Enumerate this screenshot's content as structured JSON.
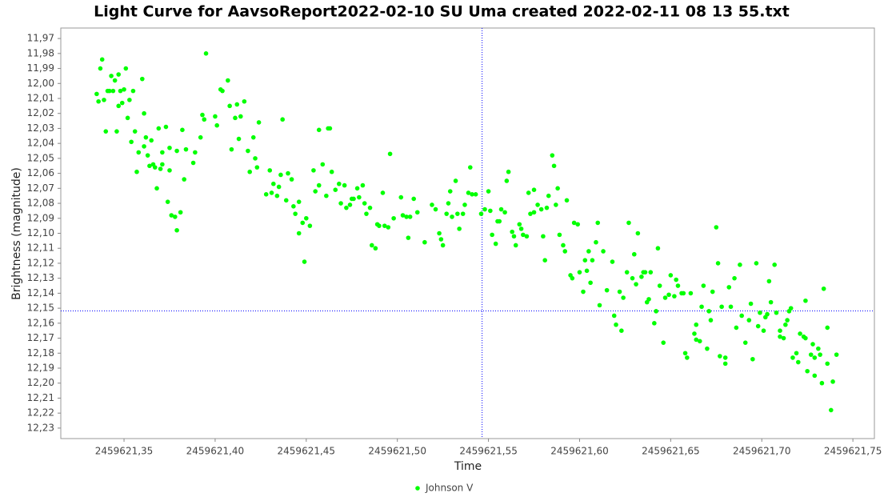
{
  "chart_data": {
    "type": "scatter",
    "title": "Light Curve for AavsoReport2022-02-10 SU Uma created 2022-02-11 08 13 55.txt",
    "x_label": "Time",
    "y_label": "Brightness (magnitude)",
    "xlim": [
      2459621.3153,
      2459621.7618
    ],
    "ylim": [
      11.963,
      12.237
    ],
    "y_inverted": true,
    "xticks": [
      {
        "value": 2459621.35,
        "label": "2459621,35"
      },
      {
        "value": 2459621.4,
        "label": "2459621,40"
      },
      {
        "value": 2459621.45,
        "label": "2459621,45"
      },
      {
        "value": 2459621.5,
        "label": "2459621,50"
      },
      {
        "value": 2459621.55,
        "label": "2459621,55"
      },
      {
        "value": 2459621.6,
        "label": "2459621,60"
      },
      {
        "value": 2459621.65,
        "label": "2459621,65"
      },
      {
        "value": 2459621.7,
        "label": "2459621,70"
      },
      {
        "value": 2459621.75,
        "label": "2459621,75"
      }
    ],
    "yticks": [
      {
        "value": 11.97,
        "label": "11,97"
      },
      {
        "value": 11.98,
        "label": "11,98"
      },
      {
        "value": 11.99,
        "label": "11,99"
      },
      {
        "value": 12.0,
        "label": "12,00"
      },
      {
        "value": 12.01,
        "label": "12,01"
      },
      {
        "value": 12.02,
        "label": "12,02"
      },
      {
        "value": 12.03,
        "label": "12,03"
      },
      {
        "value": 12.04,
        "label": "12,04"
      },
      {
        "value": 12.05,
        "label": "12,05"
      },
      {
        "value": 12.06,
        "label": "12,06"
      },
      {
        "value": 12.07,
        "label": "12,07"
      },
      {
        "value": 12.08,
        "label": "12,08"
      },
      {
        "value": 12.09,
        "label": "12,09"
      },
      {
        "value": 12.1,
        "label": "12,10"
      },
      {
        "value": 12.11,
        "label": "12,11"
      },
      {
        "value": 12.12,
        "label": "12,12"
      },
      {
        "value": 12.13,
        "label": "12,13"
      },
      {
        "value": 12.14,
        "label": "12,14"
      },
      {
        "value": 12.15,
        "label": "12,15"
      },
      {
        "value": 12.16,
        "label": "12,16"
      },
      {
        "value": 12.17,
        "label": "12,17"
      },
      {
        "value": 12.18,
        "label": "12,18"
      },
      {
        "value": 12.19,
        "label": "12,19"
      },
      {
        "value": 12.2,
        "label": "12,20"
      },
      {
        "value": 12.21,
        "label": "12,21"
      },
      {
        "value": 12.22,
        "label": "12,22"
      },
      {
        "value": 12.23,
        "label": "12,23"
      }
    ],
    "crosshair": {
      "x": 2459621.5465,
      "y": 12.1518,
      "color": "#0000ff"
    },
    "legend": "bottom",
    "x": [
      2459621.335,
      2459621.336,
      2459621.337,
      2459621.338,
      2459621.339,
      2459621.34,
      2459621.341,
      2459621.342,
      2459621.343,
      2459621.344,
      2459621.345,
      2459621.346,
      2459621.347,
      2459621.347,
      2459621.348,
      2459621.349,
      2459621.35,
      2459621.351,
      2459621.352,
      2459621.353,
      2459621.354,
      2459621.355,
      2459621.356,
      2459621.357,
      2459621.358,
      2459621.36,
      2459621.361,
      2459621.361,
      2459621.362,
      2459621.363,
      2459621.364,
      2459621.365,
      2459621.366,
      2459621.367,
      2459621.368,
      2459621.369,
      2459621.37,
      2459621.371,
      2459621.371,
      2459621.373,
      2459621.374,
      2459621.375,
      2459621.375,
      2459621.376,
      2459621.378,
      2459621.379,
      2459621.379,
      2459621.381,
      2459621.382,
      2459621.383,
      2459621.384,
      2459621.388,
      2459621.389,
      2459621.392,
      2459621.393,
      2459621.394,
      2459621.395,
      2459621.4,
      2459621.401,
      2459621.403,
      2459621.404,
      2459621.407,
      2459621.408,
      2459621.409,
      2459621.411,
      2459621.412,
      2459621.413,
      2459621.414,
      2459621.416,
      2459621.418,
      2459621.419,
      2459621.421,
      2459621.422,
      2459621.423,
      2459621.424,
      2459621.428,
      2459621.43,
      2459621.431,
      2459621.432,
      2459621.434,
      2459621.435,
      2459621.436,
      2459621.437,
      2459621.439,
      2459621.44,
      2459621.442,
      2459621.443,
      2459621.444,
      2459621.446,
      2459621.446,
      2459621.448,
      2459621.449,
      2459621.45,
      2459621.452,
      2459621.454,
      2459621.455,
      2459621.457,
      2459621.457,
      2459621.459,
      2459621.461,
      2459621.462,
      2459621.463,
      2459621.464,
      2459621.466,
      2459621.468,
      2459621.469,
      2459621.471,
      2459621.472,
      2459621.474,
      2459621.475,
      2459621.476,
      2459621.478,
      2459621.479,
      2459621.481,
      2459621.482,
      2459621.483,
      2459621.485,
      2459621.486,
      2459621.488,
      2459621.489,
      2459621.49,
      2459621.492,
      2459621.493,
      2459621.495,
      2459621.496,
      2459621.498,
      2459621.502,
      2459621.503,
      2459621.505,
      2459621.506,
      2459621.507,
      2459621.509,
      2459621.511,
      2459621.515,
      2459621.519,
      2459621.521,
      2459621.523,
      2459621.524,
      2459621.525,
      2459621.527,
      2459621.528,
      2459621.529,
      2459621.53,
      2459621.532,
      2459621.533,
      2459621.534,
      2459621.536,
      2459621.537,
      2459621.539,
      2459621.54,
      2459621.541,
      2459621.543,
      2459621.546,
      2459621.548,
      2459621.55,
      2459621.551,
      2459621.552,
      2459621.554,
      2459621.555,
      2459621.556,
      2459621.557,
      2459621.559,
      2459621.56,
      2459621.561,
      2459621.563,
      2459621.564,
      2459621.565,
      2459621.567,
      2459621.568,
      2459621.569,
      2459621.571,
      2459621.572,
      2459621.573,
      2459621.575,
      2459621.575,
      2459621.577,
      2459621.579,
      2459621.58,
      2459621.581,
      2459621.582,
      2459621.583,
      2459621.585,
      2459621.586,
      2459621.587,
      2459621.588,
      2459621.589,
      2459621.591,
      2459621.592,
      2459621.593,
      2459621.595,
      2459621.596,
      2459621.597,
      2459621.599,
      2459621.6,
      2459621.602,
      2459621.603,
      2459621.604,
      2459621.605,
      2459621.606,
      2459621.607,
      2459621.609,
      2459621.61,
      2459621.611,
      2459621.613,
      2459621.615,
      2459621.618,
      2459621.619,
      2459621.62,
      2459621.622,
      2459621.623,
      2459621.624,
      2459621.626,
      2459621.627,
      2459621.629,
      2459621.63,
      2459621.631,
      2459621.632,
      2459621.634,
      2459621.635,
      2459621.636,
      2459621.637,
      2459621.638,
      2459621.639,
      2459621.641,
      2459621.642,
      2459621.643,
      2459621.644,
      2459621.646,
      2459621.647,
      2459621.649,
      2459621.65,
      2459621.652,
      2459621.653,
      2459621.654,
      2459621.656,
      2459621.657,
      2459621.658,
      2459621.659,
      2459621.661,
      2459621.663,
      2459621.664,
      2459621.664,
      2459621.666,
      2459621.667,
      2459621.668,
      2459621.67,
      2459621.671,
      2459621.672,
      2459621.673,
      2459621.675,
      2459621.676,
      2459621.677,
      2459621.678,
      2459621.68,
      2459621.68,
      2459621.682,
      2459621.683,
      2459621.685,
      2459621.686,
      2459621.688,
      2459621.689,
      2459621.691,
      2459621.693,
      2459621.694,
      2459621.695,
      2459621.697,
      2459621.698,
      2459621.699,
      2459621.701,
      2459621.702,
      2459621.703,
      2459621.704,
      2459621.705,
      2459621.707,
      2459621.708,
      2459621.71,
      2459621.71,
      2459621.712,
      2459621.713,
      2459621.714,
      2459621.715,
      2459621.716,
      2459621.717,
      2459621.719,
      2459621.72,
      2459621.721,
      2459621.723,
      2459621.724,
      2459621.724,
      2459621.725,
      2459621.727,
      2459621.728,
      2459621.729,
      2459621.729,
      2459621.731,
      2459621.732,
      2459621.733,
      2459621.734,
      2459621.736,
      2459621.736,
      2459621.738,
      2459621.739,
      2459621.741
    ],
    "series": [
      {
        "name": "Johnson V",
        "color": "#00ff00",
        "values": [
          12.007,
          12.012,
          11.99,
          11.984,
          12.011,
          12.032,
          12.005,
          12.005,
          11.995,
          12.005,
          11.998,
          12.032,
          11.994,
          12.015,
          12.005,
          12.013,
          12.004,
          11.99,
          12.023,
          12.011,
          12.039,
          12.005,
          12.032,
          12.059,
          12.046,
          11.997,
          12.02,
          12.042,
          12.036,
          12.048,
          12.055,
          12.038,
          12.054,
          12.056,
          12.07,
          12.03,
          12.057,
          12.046,
          12.054,
          12.029,
          12.079,
          12.058,
          12.043,
          12.088,
          12.089,
          12.045,
          12.098,
          12.086,
          12.031,
          12.064,
          12.044,
          12.053,
          12.046,
          12.036,
          12.021,
          12.024,
          11.98,
          12.022,
          12.028,
          12.004,
          12.005,
          11.998,
          12.015,
          12.044,
          12.023,
          12.014,
          12.037,
          12.022,
          12.012,
          12.045,
          12.059,
          12.036,
          12.05,
          12.056,
          12.026,
          12.074,
          12.058,
          12.073,
          12.067,
          12.075,
          12.069,
          12.061,
          12.024,
          12.078,
          12.06,
          12.064,
          12.082,
          12.087,
          12.079,
          12.1,
          12.093,
          12.119,
          12.09,
          12.095,
          12.058,
          12.072,
          12.068,
          12.031,
          12.054,
          12.075,
          12.03,
          12.03,
          12.059,
          12.071,
          12.067,
          12.08,
          12.068,
          12.083,
          12.081,
          12.077,
          12.077,
          12.07,
          12.076,
          12.068,
          12.08,
          12.087,
          12.083,
          12.108,
          12.11,
          12.094,
          12.095,
          12.073,
          12.095,
          12.096,
          12.047,
          12.09,
          12.076,
          12.088,
          12.089,
          12.103,
          12.089,
          12.077,
          12.086,
          12.106,
          12.081,
          12.084,
          12.1,
          12.104,
          12.108,
          12.087,
          12.08,
          12.072,
          12.089,
          12.065,
          12.087,
          12.097,
          12.087,
          12.081,
          12.073,
          12.056,
          12.074,
          12.074,
          12.087,
          12.084,
          12.072,
          12.085,
          12.101,
          12.107,
          12.092,
          12.092,
          12.084,
          12.086,
          12.065,
          12.059,
          12.099,
          12.102,
          12.108,
          12.094,
          12.097,
          12.101,
          12.102,
          12.073,
          12.087,
          12.086,
          12.071,
          12.081,
          12.084,
          12.102,
          12.118,
          12.083,
          12.075,
          12.048,
          12.055,
          12.081,
          12.07,
          12.101,
          12.108,
          12.112,
          12.078,
          12.128,
          12.13,
          12.093,
          12.094,
          12.126,
          12.139,
          12.118,
          12.125,
          12.112,
          12.133,
          12.118,
          12.106,
          12.093,
          12.148,
          12.112,
          12.138,
          12.119,
          12.155,
          12.161,
          12.139,
          12.165,
          12.143,
          12.126,
          12.093,
          12.13,
          12.114,
          12.134,
          12.1,
          12.129,
          12.126,
          12.126,
          12.146,
          12.144,
          12.126,
          12.16,
          12.152,
          12.11,
          12.135,
          12.173,
          12.143,
          12.141,
          12.128,
          12.142,
          12.131,
          12.135,
          12.14,
          12.14,
          12.18,
          12.183,
          12.14,
          12.167,
          12.161,
          12.171,
          12.172,
          12.149,
          12.135,
          12.177,
          12.152,
          12.158,
          12.139,
          12.096,
          12.12,
          12.182,
          12.149,
          12.187,
          12.183,
          12.136,
          12.149,
          12.13,
          12.163,
          12.121,
          12.155,
          12.173,
          12.158,
          12.147,
          12.184,
          12.12,
          12.162,
          12.153,
          12.165,
          12.156,
          12.154,
          12.132,
          12.146,
          12.121,
          12.153,
          12.165,
          12.169,
          12.17,
          12.161,
          12.158,
          12.152,
          12.15,
          12.183,
          12.18,
          12.186,
          12.167,
          12.169,
          12.145,
          12.17,
          12.192,
          12.181,
          12.174,
          12.195,
          12.183,
          12.177,
          12.181,
          12.2,
          12.137,
          12.163,
          12.187,
          12.218,
          12.199,
          12.181
        ]
      }
    ]
  }
}
